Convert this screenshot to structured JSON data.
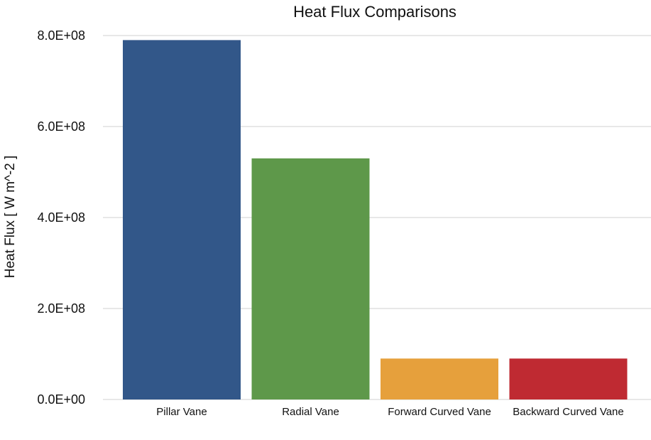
{
  "chart_data": {
    "type": "bar",
    "title": "Heat Flux Comparisons",
    "xlabel": "",
    "ylabel": "Heat Flux [ W m^-2 ]",
    "categories": [
      "Pillar Vane",
      "Radial Vane",
      "Forward Curved Vane",
      "Backward Curved Vane"
    ],
    "values": [
      790000000,
      530000000,
      90000000,
      90000000
    ],
    "colors": [
      "#325789",
      "#5e984a",
      "#e6a03c",
      "#bf2a32"
    ],
    "ylim": [
      0,
      800000000
    ],
    "yticks": [
      0,
      200000000,
      400000000,
      600000000,
      800000000
    ],
    "ytick_labels": [
      "0.0E+00",
      "2.0E+08",
      "4.0E+08",
      "6.0E+08",
      "8.0E+08"
    ],
    "grid": true,
    "legend": "none"
  }
}
